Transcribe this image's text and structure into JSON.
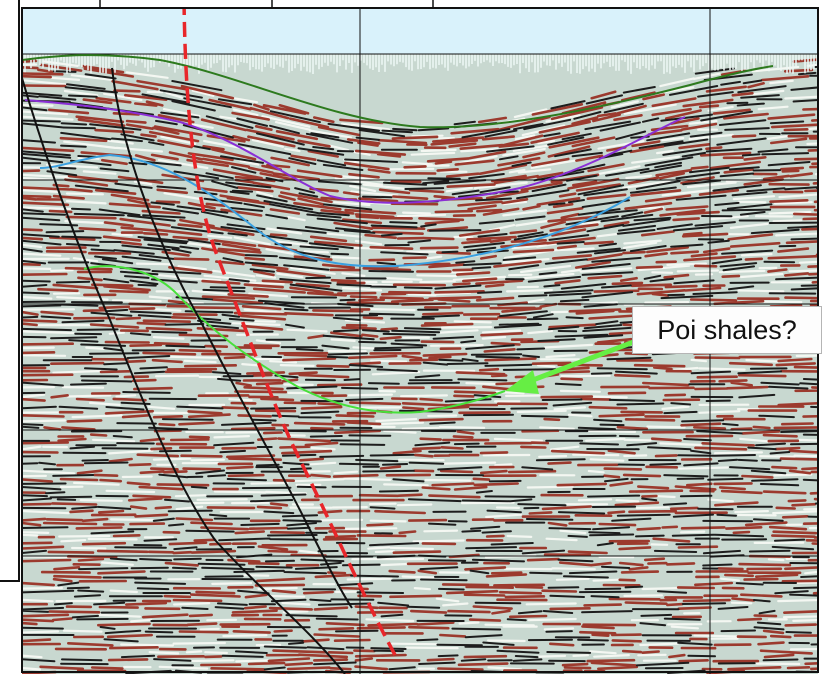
{
  "annotation": {
    "label": "Poi shales?",
    "arrow_color": "#66ee44"
  },
  "horizons": [
    {
      "id": "dark-green-horizon",
      "color": "#2d7a1e"
    },
    {
      "id": "purple-horizon",
      "color": "#8a2fd6"
    },
    {
      "id": "blue-horizon",
      "color": "#3aa0e0"
    },
    {
      "id": "light-green-horizon",
      "color": "#47e03a"
    }
  ],
  "faults": [
    {
      "id": "fault-outer",
      "color": "#111111"
    },
    {
      "id": "fault-inner",
      "color": "#111111"
    },
    {
      "id": "fault-dashed-red",
      "color": "#e8262a"
    }
  ],
  "colors": {
    "water": "#d9f2fb",
    "background": "#c8d8d0",
    "red_event": "#9c3a2e",
    "black_event": "#1d1d1d",
    "grid": "#111111"
  }
}
